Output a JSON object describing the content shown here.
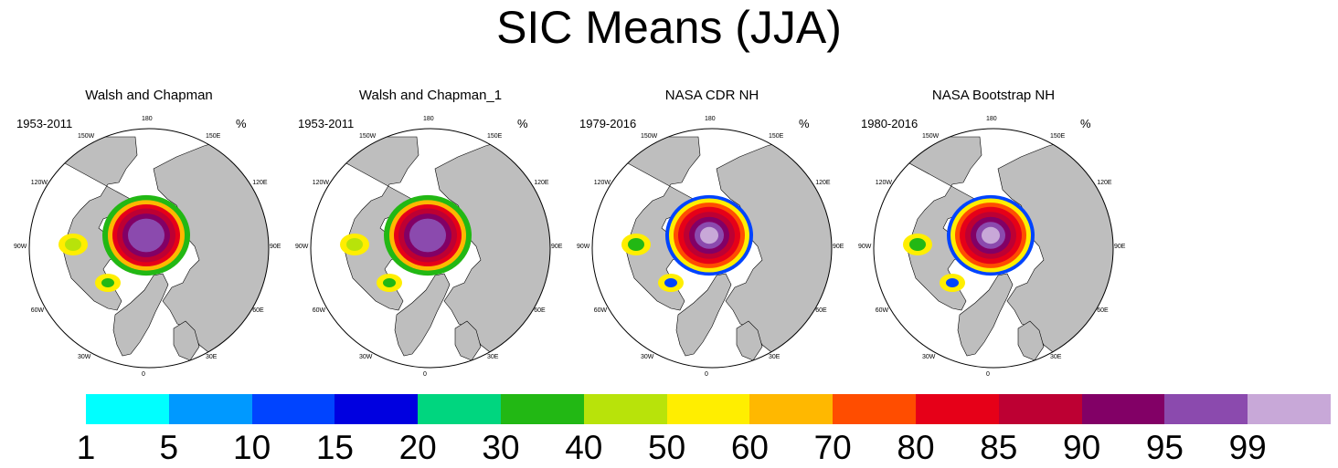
{
  "title": "SIC Means (JJA)",
  "units_label": "%",
  "longitude_labels": [
    "180",
    "150E",
    "120E",
    "90E",
    "60E",
    "30E",
    "0",
    "30W",
    "60W",
    "90W",
    "120W",
    "150W"
  ],
  "panels": [
    {
      "title": "Walsh and Chapman",
      "years": "1953-2011"
    },
    {
      "title": "Walsh and Chapman_1",
      "years": "1953-2011"
    },
    {
      "title": "NASA CDR NH",
      "years": "1979-2016"
    },
    {
      "title": "NASA Bootstrap NH",
      "years": "1980-2016"
    }
  ],
  "colorbar": {
    "labels": [
      "1",
      "5",
      "10",
      "15",
      "20",
      "30",
      "40",
      "50",
      "60",
      "70",
      "80",
      "85",
      "90",
      "95",
      "99"
    ],
    "colors": [
      "#00ffff",
      "#0099ff",
      "#0044ff",
      "#0000e0",
      "#00d67f",
      "#22b814",
      "#b8e30a",
      "#ffee00",
      "#ffb800",
      "#ff4d00",
      "#e60018",
      "#bd0033",
      "#820066",
      "#8b4aae",
      "#c8a8d8"
    ]
  }
}
